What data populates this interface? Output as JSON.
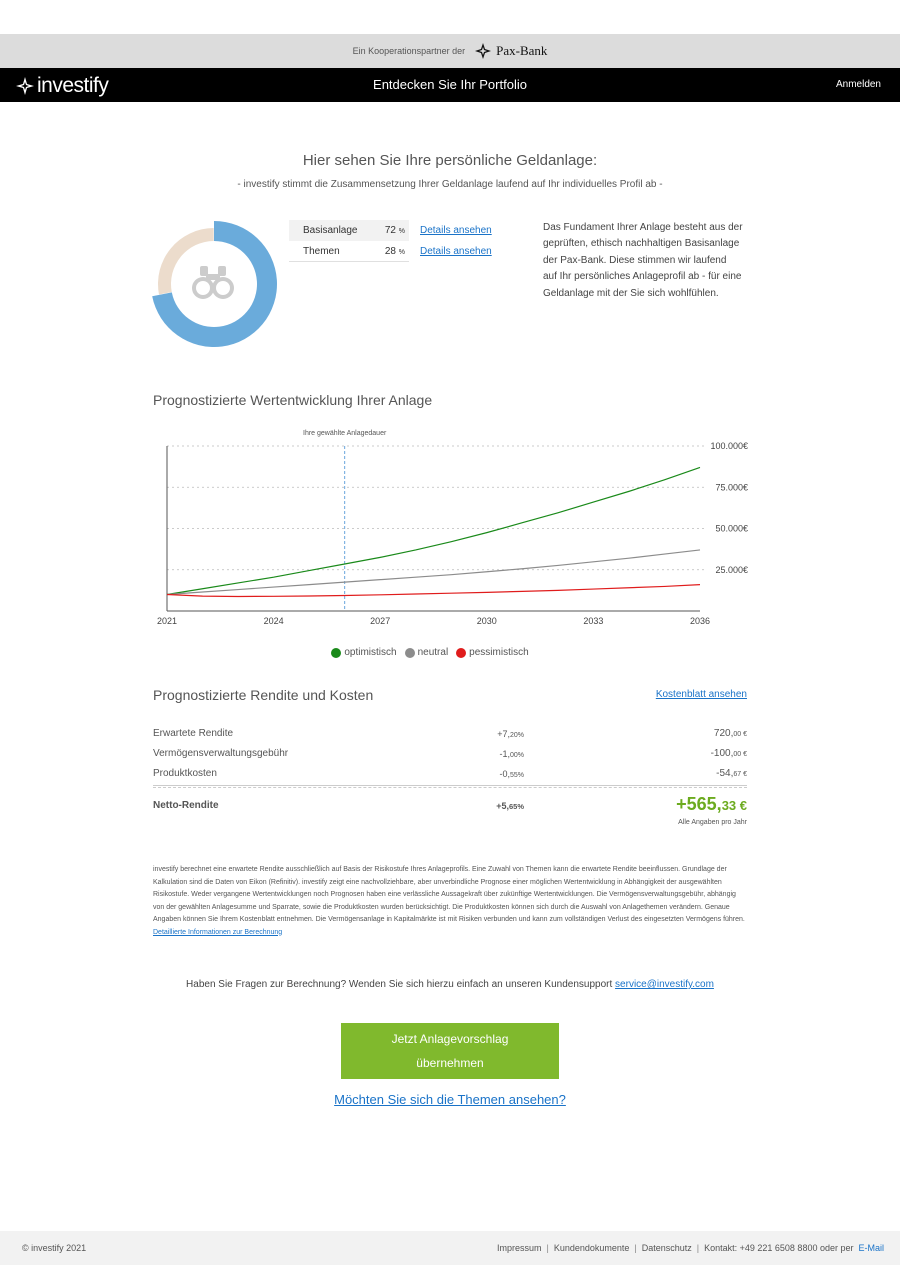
{
  "partner": {
    "text": "Ein Kooperationspartner der",
    "bank_name": "Pax-Bank"
  },
  "nav": {
    "brand": "investify",
    "title": "Entdecken Sie Ihr Portfolio",
    "login": "Anmelden"
  },
  "hero": {
    "title": "Hier sehen Sie Ihre persönliche Geldanlage:",
    "subtitle": "- investify stimmt die Zusammensetzung Ihrer Geldanlage laufend auf Ihr individuelles Profil ab -"
  },
  "allocation": {
    "items": [
      {
        "name": "Basisanlage",
        "value": "72",
        "unit": "%",
        "link": "Details ansehen",
        "fraction": 0.72,
        "color": "#6aabdb"
      },
      {
        "name": "Themen",
        "value": "28",
        "unit": "%",
        "link": "Details ansehen",
        "fraction": 0.28,
        "color": "#ecdccc"
      }
    ],
    "center_icon": "binoculars-icon",
    "description": "Das Fundament Ihrer Anlage besteht aus der geprüften, ethisch nachhaltigen Basisanlage der Pax-Bank. Diese stimmen wir laufend auf Ihr persönliches Anlageprofil ab - für eine Geldanlage mit der Sie sich wohlfühlen."
  },
  "forecast": {
    "title": "Prognostizierte Wertentwicklung Ihrer Anlage"
  },
  "chart_data": {
    "type": "line",
    "title": "",
    "xlabel": "",
    "ylabel": "",
    "x": [
      2021,
      2022,
      2023,
      2024,
      2025,
      2026,
      2027,
      2028,
      2029,
      2030,
      2031,
      2032,
      2033,
      2034,
      2035,
      2036
    ],
    "xticks": [
      "2021",
      "2024",
      "2027",
      "2030",
      "2033",
      "2036"
    ],
    "xlim": [
      2021,
      2036
    ],
    "ylim": [
      0,
      100000
    ],
    "yticks": [
      "25.000€",
      "50.000€",
      "75.000€",
      "100.000€"
    ],
    "ytick_values": [
      25000,
      50000,
      75000,
      100000
    ],
    "grid": true,
    "legend_position": "bottom",
    "annotation": {
      "label": "Ihre gewählte Anlagedauer",
      "x": 2026
    },
    "series": [
      {
        "name": "optimistisch",
        "color": "#1a8a1a",
        "values": [
          10000,
          13500,
          17000,
          20500,
          24500,
          28500,
          32500,
          37000,
          42000,
          47500,
          53500,
          59500,
          66000,
          72500,
          79500,
          87000
        ]
      },
      {
        "name": "neutral",
        "color": "#8c8c8c",
        "values": [
          10000,
          11500,
          13000,
          14500,
          16000,
          17500,
          19000,
          20500,
          22000,
          23800,
          25600,
          27600,
          29800,
          32000,
          34500,
          37000
        ]
      },
      {
        "name": "pessimistisch",
        "color": "#e01c1c",
        "values": [
          10000,
          9000,
          8800,
          8900,
          9100,
          9400,
          9800,
          10300,
          10800,
          11300,
          11900,
          12500,
          13300,
          14100,
          14900,
          16000
        ]
      }
    ]
  },
  "costs": {
    "title": "Prognostizierte Rendite und Kosten",
    "sheet_link": "Kostenblatt ansehen",
    "rows": [
      {
        "label": "Erwartete Rendite",
        "pct_main": "+7,",
        "pct_dec": "20%",
        "amt_main": "720,",
        "amt_dec": "00 €"
      },
      {
        "label": "Vermögensverwaltungsgebühr",
        "pct_main": "-1,",
        "pct_dec": "00%",
        "amt_main": "-100,",
        "amt_dec": "00 €"
      },
      {
        "label": "Produktkosten",
        "pct_main": "-0,",
        "pct_dec": "55%",
        "amt_main": "-54,",
        "amt_dec": "67 €"
      }
    ],
    "net": {
      "label": "Netto-Rendite",
      "pct_main": "+5,",
      "pct_dec": "65%",
      "amt_main": "+565,",
      "amt_dec": "33 €"
    },
    "note": "Alle Angaben pro Jahr"
  },
  "disclaimer": {
    "text": "investify berechnet eine erwartete Rendite ausschließlich auf Basis der Risikostufe Ihres Anlageprofils. Eine Zuwahl von Themen kann die erwartete Rendite beeinflussen. Grundlage der Kalkulation sind die Daten von Eikon (Refinitiv). investify zeigt eine nachvollziehbare, aber unverbindliche Prognose einer möglichen Wertentwicklung in Abhängigkeit der ausgewählten Risikostufe. Weder vergangene Wertentwicklungen noch Prognosen haben eine verlässliche Aussagekraft über zukünftige Wertentwicklungen. Die Vermögensverwaltungsgebühr, abhängig von der gewählten Anlagesumme und Sparrate, sowie die Produktkosten wurden berücksichtigt. Die Produktkosten können sich durch die Auswahl von Anlagethemen verändern. Genaue Angaben können Sie Ihrem Kostenblatt entnehmen. Die Vermögensanlage in Kapitalmärkte ist mit Risiken verbunden und kann zum vollständigen Verlust des eingesetzten Vermögens führen.",
    "link": "Detaillierte Informationen zur Berechnung"
  },
  "support": {
    "text": "Haben Sie Fragen zur Berechnung? Wenden Sie sich hierzu einfach an unseren Kundensupport",
    "email": "service@investify.com"
  },
  "cta": {
    "line1": "Jetzt Anlagevorschlag",
    "line2": "übernehmen",
    "color": "#80b92d"
  },
  "themen_link": "Möchten Sie sich die Themen ansehen?",
  "footer": {
    "copyright": "© investify 2021",
    "links": [
      "Impressum",
      "Kundendokumente",
      "Datenschutz"
    ],
    "contact_prefix": "Kontakt: +49 221 6508 8800 oder per",
    "contact_mail": "E-Mail"
  }
}
